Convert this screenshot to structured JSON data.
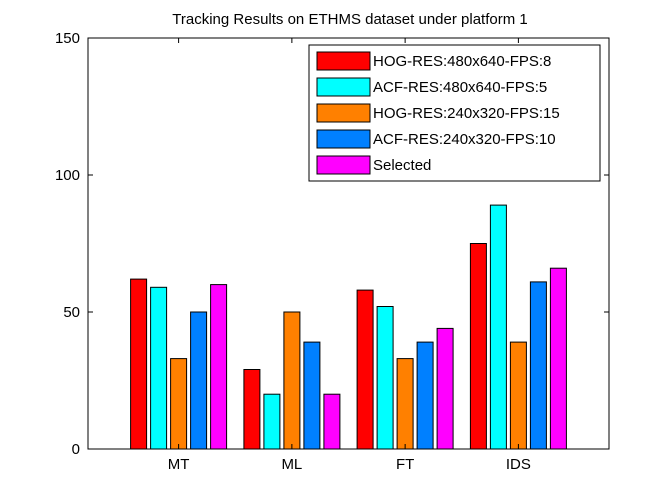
{
  "chart_data": {
    "type": "bar",
    "title": "Tracking Results on ETHMS dataset under platform 1",
    "xlabel": "",
    "ylabel": "",
    "categories": [
      "MT",
      "ML",
      "FT",
      "IDS"
    ],
    "ylim": [
      0,
      150
    ],
    "yticks": [
      "0",
      "50",
      "100",
      "150"
    ],
    "legend_position": "top-right",
    "grid": false,
    "series": [
      {
        "name": "HOG-RES:480x640-FPS:8",
        "color": "#ff0000",
        "values": [
          62,
          29,
          58,
          75
        ]
      },
      {
        "name": "ACF-RES:480x640-FPS:5",
        "color": "#00ffff",
        "values": [
          59,
          20,
          52,
          89
        ]
      },
      {
        "name": "HOG-RES:240x320-FPS:15",
        "color": "#ff8000",
        "values": [
          33,
          50,
          33,
          39
        ]
      },
      {
        "name": "ACF-RES:240x320-FPS:10",
        "color": "#0080ff",
        "values": [
          50,
          39,
          39,
          61
        ]
      },
      {
        "name": "Selected",
        "color": "#ff00ff",
        "values": [
          60,
          20,
          44,
          66
        ]
      }
    ]
  }
}
